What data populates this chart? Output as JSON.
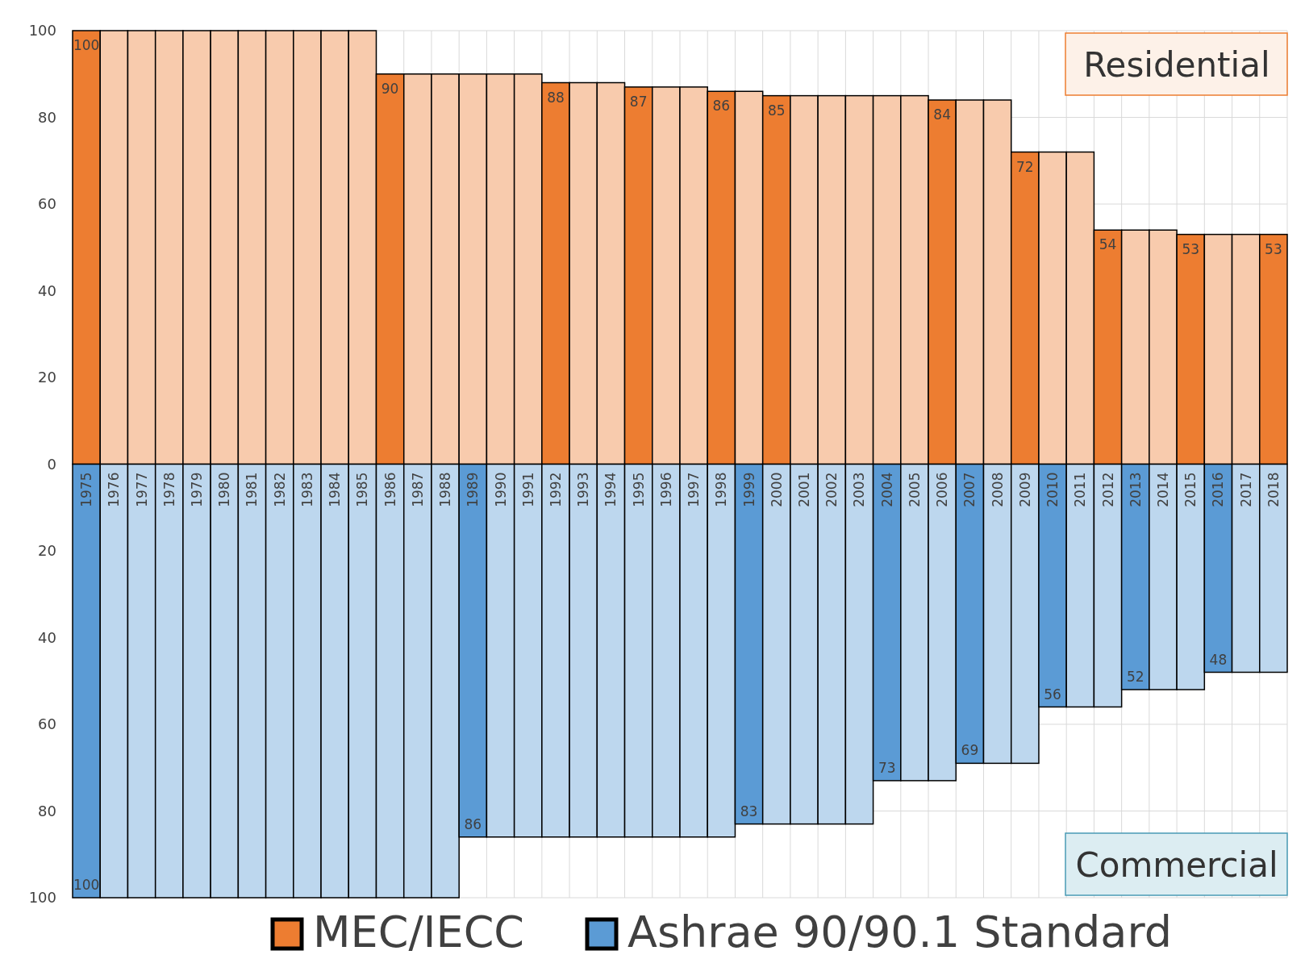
{
  "chart_data": [
    {
      "type": "bar",
      "grid": true,
      "legend": "bottom",
      "tick_labels": "y",
      "categories": [
        "1975",
        "1976",
        "1977",
        "1978",
        "1979",
        "1980",
        "1981",
        "1982",
        "1983",
        "1984",
        "1985",
        "1986",
        "1987",
        "1988",
        "1989",
        "1990",
        "1991",
        "1992",
        "1993",
        "1994",
        "1995",
        "1996",
        "1997",
        "1998",
        "1999",
        "2000",
        "2001",
        "2002",
        "2003",
        "2004",
        "2005",
        "2006",
        "2007",
        "2008",
        "2009",
        "2010",
        "2011",
        "2012",
        "2013",
        "2014",
        "2015",
        "2016",
        "2017",
        "2018"
      ],
      "ylim": [
        0,
        100
      ],
      "yticks": [
        0,
        20,
        40,
        60,
        80,
        100
      ],
      "series": [
        {
          "name": "MEC/IECC",
          "color": "#ed7d31",
          "values": [
            100,
            100,
            100,
            100,
            100,
            100,
            100,
            100,
            100,
            100,
            100,
            90,
            90,
            90,
            90,
            90,
            90,
            88,
            88,
            88,
            87,
            87,
            87,
            86,
            86,
            85,
            85,
            85,
            85,
            85,
            85,
            84,
            84,
            84,
            72,
            72,
            72,
            54,
            54,
            54,
            53,
            53,
            53,
            53
          ],
          "colors": [
            "#ed7d31",
            "#f8cbad",
            "#f8cbad",
            "#f8cbad",
            "#f8cbad",
            "#f8cbad",
            "#f8cbad",
            "#f8cbad",
            "#f8cbad",
            "#f8cbad",
            "#f8cbad",
            "#ed7d31",
            "#f8cbad",
            "#f8cbad",
            "#f8cbad",
            "#f8cbad",
            "#f8cbad",
            "#ed7d31",
            "#f8cbad",
            "#f8cbad",
            "#ed7d31",
            "#f8cbad",
            "#f8cbad",
            "#ed7d31",
            "#f8cbad",
            "#ed7d31",
            "#f8cbad",
            "#f8cbad",
            "#f8cbad",
            "#f8cbad",
            "#f8cbad",
            "#ed7d31",
            "#f8cbad",
            "#f8cbad",
            "#ed7d31",
            "#f8cbad",
            "#f8cbad",
            "#ed7d31",
            "#f8cbad",
            "#f8cbad",
            "#ed7d31",
            "#f8cbad",
            "#f8cbad",
            "#ed7d31"
          ],
          "value_labels": [
            "100",
            null,
            null,
            null,
            null,
            null,
            null,
            null,
            null,
            null,
            null,
            "90",
            null,
            null,
            null,
            null,
            null,
            "88",
            null,
            null,
            "87",
            null,
            null,
            "86",
            null,
            "85",
            null,
            null,
            null,
            null,
            null,
            "84",
            null,
            null,
            "72",
            null,
            null,
            "54",
            null,
            null,
            "53",
            null,
            null,
            "53"
          ]
        }
      ],
      "annotations": [
        "Residential"
      ]
    },
    {
      "type": "bar",
      "grid": true,
      "legend": "bottom",
      "categories": [
        "1975",
        "1976",
        "1977",
        "1978",
        "1979",
        "1980",
        "1981",
        "1982",
        "1983",
        "1984",
        "1985",
        "1986",
        "1987",
        "1988",
        "1989",
        "1990",
        "1991",
        "1992",
        "1993",
        "1994",
        "1995",
        "1996",
        "1997",
        "1998",
        "1999",
        "2000",
        "2001",
        "2002",
        "2003",
        "2004",
        "2005",
        "2006",
        "2007",
        "2008",
        "2009",
        "2010",
        "2011",
        "2012",
        "2013",
        "2014",
        "2015",
        "2016",
        "2017",
        "2018"
      ],
      "ylim": [
        100,
        0
      ],
      "yticks": [
        20,
        40,
        60,
        80,
        100
      ],
      "series": [
        {
          "name": "Ashrae 90/90.1 Standard",
          "color": "#5b9bd5",
          "values": [
            100,
            100,
            100,
            100,
            100,
            100,
            100,
            100,
            100,
            100,
            100,
            100,
            100,
            100,
            86,
            86,
            86,
            86,
            86,
            86,
            86,
            86,
            86,
            86,
            83,
            83,
            83,
            83,
            83,
            73,
            73,
            73,
            69,
            69,
            69,
            56,
            56,
            56,
            52,
            52,
            52,
            48,
            48,
            48
          ],
          "colors": [
            "#5b9bd5",
            "#bdd7ee",
            "#bdd7ee",
            "#bdd7ee",
            "#bdd7ee",
            "#bdd7ee",
            "#bdd7ee",
            "#bdd7ee",
            "#bdd7ee",
            "#bdd7ee",
            "#bdd7ee",
            "#bdd7ee",
            "#bdd7ee",
            "#bdd7ee",
            "#5b9bd5",
            "#bdd7ee",
            "#bdd7ee",
            "#bdd7ee",
            "#bdd7ee",
            "#bdd7ee",
            "#bdd7ee",
            "#bdd7ee",
            "#bdd7ee",
            "#bdd7ee",
            "#5b9bd5",
            "#bdd7ee",
            "#bdd7ee",
            "#bdd7ee",
            "#bdd7ee",
            "#5b9bd5",
            "#bdd7ee",
            "#bdd7ee",
            "#5b9bd5",
            "#bdd7ee",
            "#bdd7ee",
            "#5b9bd5",
            "#bdd7ee",
            "#bdd7ee",
            "#5b9bd5",
            "#bdd7ee",
            "#bdd7ee",
            "#5b9bd5",
            "#bdd7ee",
            "#bdd7ee"
          ],
          "value_labels": [
            "100",
            null,
            null,
            null,
            null,
            null,
            null,
            null,
            null,
            null,
            null,
            null,
            null,
            null,
            "86",
            null,
            null,
            null,
            null,
            null,
            null,
            null,
            null,
            null,
            "83",
            null,
            null,
            null,
            null,
            "73",
            null,
            null,
            "69",
            null,
            null,
            "56",
            null,
            null,
            "52",
            null,
            null,
            "48",
            null,
            null
          ]
        }
      ],
      "annotations": [
        "Commercial"
      ]
    }
  ]
}
